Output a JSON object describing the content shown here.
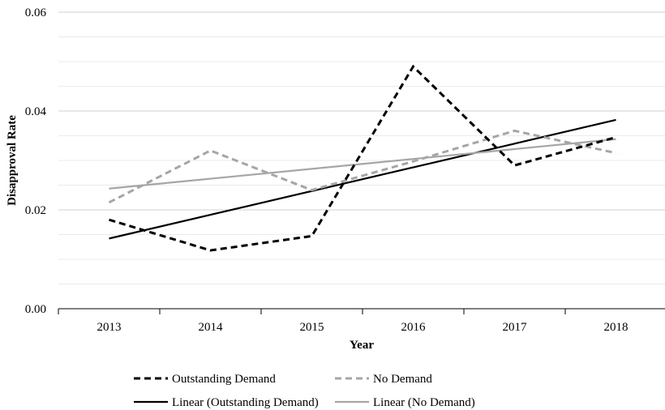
{
  "chart_data": {
    "type": "line",
    "title": "",
    "xlabel": "Year",
    "ylabel": "Disapproval Rate",
    "x": [
      "2013",
      "2014",
      "2015",
      "2016",
      "2017",
      "2018"
    ],
    "ylim": [
      0,
      0.06
    ],
    "yticks": [
      "0.00",
      "0.02",
      "0.04",
      "0.06"
    ],
    "grid": true,
    "legend_position": "bottom",
    "series": [
      {
        "name": "Outstanding Demand",
        "values": [
          0.018,
          0.0118,
          0.0147,
          0.049,
          0.029,
          0.0347
        ],
        "color": "#000000",
        "style": "dashed"
      },
      {
        "name": "No Demand",
        "values": [
          0.0215,
          0.032,
          0.024,
          0.0298,
          0.036,
          0.0315
        ],
        "color": "#a6a6a6",
        "style": "dashed"
      },
      {
        "name": "Linear (Outstanding Demand)",
        "values": [
          0.0142,
          0.019,
          0.0238,
          0.0286,
          0.0334,
          0.0382
        ],
        "color": "#000000",
        "style": "solid"
      },
      {
        "name": "Linear (No Demand)",
        "values": [
          0.0243,
          0.0263,
          0.0283,
          0.0303,
          0.0323,
          0.0343
        ],
        "color": "#a6a6a6",
        "style": "solid"
      }
    ]
  }
}
